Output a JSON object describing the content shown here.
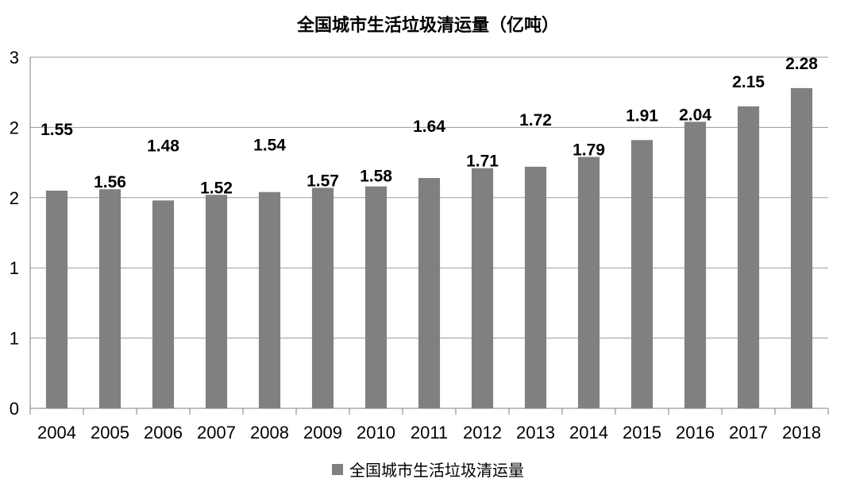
{
  "chart_data": {
    "type": "bar",
    "title": "全国城市生活垃圾清运量（亿吨）",
    "xlabel": "",
    "ylabel": "",
    "categories": [
      "2004",
      "2005",
      "2006",
      "2007",
      "2008",
      "2009",
      "2010",
      "2011",
      "2012",
      "2013",
      "2014",
      "2015",
      "2016",
      "2017",
      "2018"
    ],
    "series": [
      {
        "name": "全国城市生活垃圾清运量",
        "values": [
          1.55,
          1.56,
          1.48,
          1.52,
          1.54,
          1.57,
          1.58,
          1.64,
          1.71,
          1.72,
          1.79,
          1.91,
          2.04,
          2.15,
          2.28
        ],
        "labels": [
          "1.55",
          "1.56",
          "1.48",
          "1.52",
          "1.54",
          "1.57",
          "1.58",
          "1.64",
          "1.71",
          "1.72",
          "1.79",
          "1.91",
          "2.04",
          "2.15",
          "2.28"
        ],
        "color": "#808080"
      }
    ],
    "ylim": [
      0,
      2.5
    ],
    "yticks": [
      0,
      0.5,
      1,
      1.5,
      2,
      2.5
    ],
    "ytick_labels": [
      "0",
      "1",
      "1",
      "2",
      "2",
      "3"
    ],
    "grid": true,
    "legend_position": "bottom"
  }
}
